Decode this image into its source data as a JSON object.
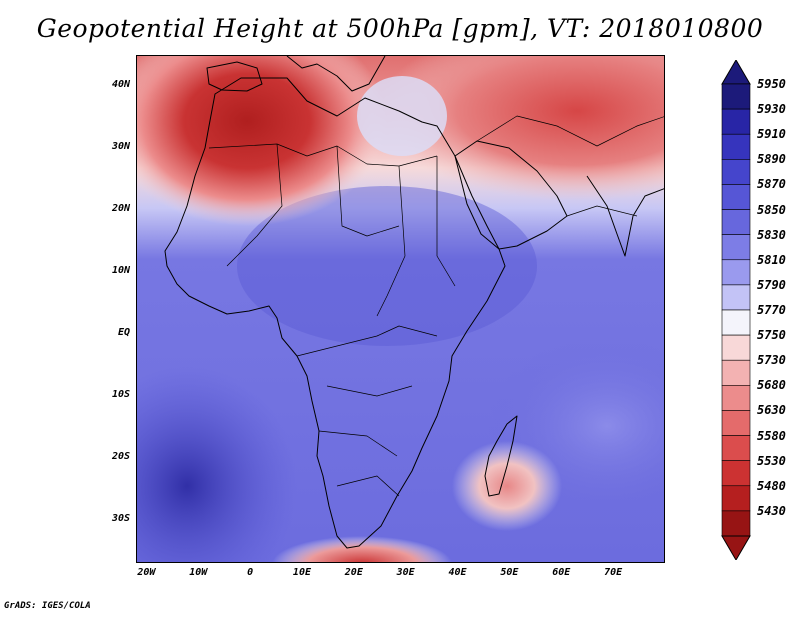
{
  "title": "Geopotential Height at 500hPa [gpm], VT: 2018010800",
  "credit": "GrADS: IGES/COLA",
  "lat_ticks": [
    {
      "label": "40N",
      "value": 40
    },
    {
      "label": "30N",
      "value": 30
    },
    {
      "label": "20N",
      "value": 20
    },
    {
      "label": "10N",
      "value": 10
    },
    {
      "label": "EQ",
      "value": 0
    },
    {
      "label": "10S",
      "value": -10
    },
    {
      "label": "20S",
      "value": -20
    },
    {
      "label": "30S",
      "value": -30
    }
  ],
  "lon_ticks": [
    {
      "label": "20W",
      "value": -20
    },
    {
      "label": "10W",
      "value": -10
    },
    {
      "label": "0",
      "value": 0
    },
    {
      "label": "10E",
      "value": 10
    },
    {
      "label": "20E",
      "value": 20
    },
    {
      "label": "30E",
      "value": 30
    },
    {
      "label": "40E",
      "value": 40
    },
    {
      "label": "50E",
      "value": 50
    },
    {
      "label": "60E",
      "value": 60
    },
    {
      "label": "70E",
      "value": 70
    }
  ],
  "extent": {
    "lon_min": -22,
    "lon_max": 80,
    "lat_min": -37,
    "lat_max": 45
  },
  "colorbar": {
    "levels": [
      "5950",
      "5930",
      "5910",
      "5890",
      "5870",
      "5850",
      "5830",
      "5810",
      "5790",
      "5770",
      "5750",
      "5730",
      "5680",
      "5630",
      "5580",
      "5530",
      "5480",
      "5430"
    ],
    "colors": [
      "#1c1a7a",
      "#2825a6",
      "#3634bd",
      "#4545cc",
      "#5656d6",
      "#6767dd",
      "#7d7de6",
      "#9a9aee",
      "#c3c3f6",
      "#f4f4fb",
      "#f8d8d8",
      "#f3b2b2",
      "#ec8c8c",
      "#e46b6b",
      "#db4d4d",
      "#cc3232",
      "#b51f1f",
      "#971414"
    ]
  },
  "field_blobs": [
    {
      "lon": -6,
      "lat": 36,
      "rx": 17,
      "ry": 11,
      "color": "#c32a2a"
    },
    {
      "lon": 50,
      "lat": 38,
      "rx": 34,
      "ry": 11,
      "color": "#e07070"
    },
    {
      "lon": 26,
      "lat": 35,
      "rx": 8,
      "ry": 8,
      "color": "#f4f4fb"
    },
    {
      "lon": 47,
      "lat": -21,
      "rx": 7,
      "ry": 5,
      "color": "#e9b6b6"
    },
    {
      "lon": 22,
      "lat": -36,
      "rx": 12,
      "ry": 3,
      "color": "#d24a4a"
    },
    {
      "lon": -18,
      "lat": -30,
      "rx": 6,
      "ry": 5,
      "color": "#2f2ea8"
    },
    {
      "lon": 60,
      "lat": -12,
      "rx": 14,
      "ry": 9,
      "color": "#8f8feb"
    }
  ]
}
